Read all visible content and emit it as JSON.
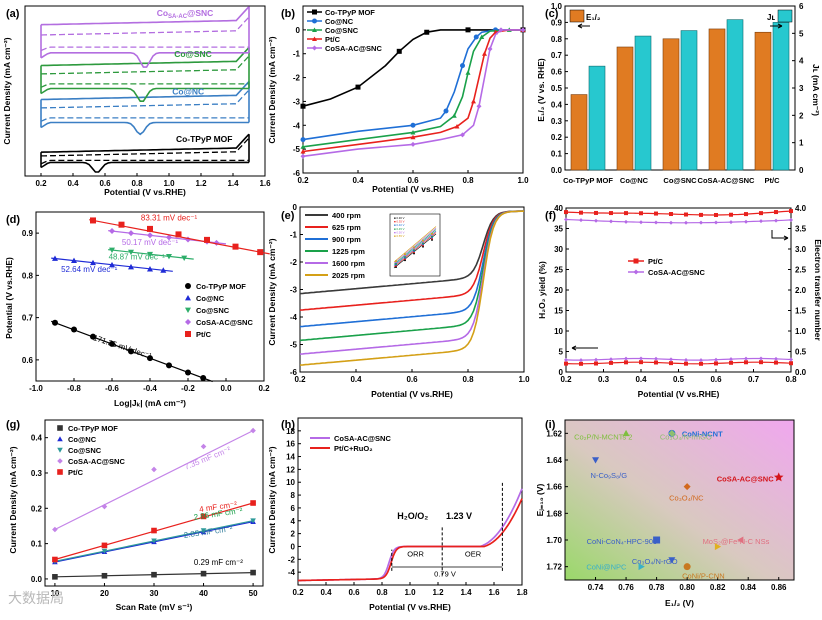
{
  "watermark": "大数据局",
  "chart_data": [
    {
      "panel": "(a)",
      "type": "line",
      "xlabel": "Potential (V vs.RHE)",
      "ylabel": "Current Density (mA cm⁻²)",
      "xlim": [
        0.1,
        1.6
      ],
      "xticks": [
        0.2,
        0.4,
        0.6,
        0.8,
        1.0,
        1.2,
        1.4,
        1.6
      ],
      "series": [
        {
          "name": "Co-TPyP MOF",
          "color": "#000000"
        },
        {
          "name": "Co@NC",
          "color": "#3b7fc4"
        },
        {
          "name": "Co@SNC",
          "color": "#2e9a3e"
        },
        {
          "name": "Coₛₐ-ₐᶜ@SNC",
          "label": "CoSA-AC@SNC",
          "color": "#b36ee0"
        }
      ]
    },
    {
      "panel": "(b)",
      "type": "line",
      "xlabel": "Potential (V vs.RHE)",
      "ylabel": "Current Density (mA cm⁻²)",
      "xlim": [
        0.2,
        1.0
      ],
      "ylim": [
        -6,
        1
      ],
      "xticks": [
        0.2,
        0.4,
        0.6,
        0.8,
        1.0
      ],
      "yticks": [
        0,
        -1,
        -2,
        -3,
        -4,
        -5,
        -6
      ],
      "series": [
        {
          "name": "Co-TPyP MOF",
          "color": "#000000",
          "x": [
            0.2,
            0.3,
            0.4,
            0.5,
            0.55,
            0.6,
            0.65,
            0.7,
            0.8,
            0.9,
            1.0
          ],
          "y": [
            -3.2,
            -2.9,
            -2.4,
            -1.5,
            -0.9,
            -0.4,
            -0.1,
            0,
            0,
            0,
            0
          ]
        },
        {
          "name": "Co@NC",
          "color": "#1f6fd6",
          "x": [
            0.2,
            0.4,
            0.6,
            0.7,
            0.72,
            0.75,
            0.78,
            0.8,
            0.83,
            0.85,
            0.9,
            1.0
          ],
          "y": [
            -4.6,
            -4.25,
            -4.0,
            -3.7,
            -3.4,
            -2.6,
            -1.5,
            -0.8,
            -0.3,
            -0.1,
            0,
            0
          ]
        },
        {
          "name": "Co@SNC",
          "color": "#1aa14a",
          "x": [
            0.2,
            0.4,
            0.6,
            0.7,
            0.75,
            0.78,
            0.8,
            0.82,
            0.85,
            0.88,
            0.95,
            1.0
          ],
          "y": [
            -4.9,
            -4.6,
            -4.3,
            -4.05,
            -3.6,
            -2.8,
            -1.8,
            -0.9,
            -0.3,
            -0.05,
            0,
            0
          ]
        },
        {
          "name": "Pt/C",
          "color": "#e8211d",
          "x": [
            0.2,
            0.4,
            0.6,
            0.7,
            0.76,
            0.8,
            0.82,
            0.84,
            0.86,
            0.88,
            0.9,
            0.95,
            1.0
          ],
          "y": [
            -5.1,
            -4.8,
            -4.5,
            -4.3,
            -4.05,
            -3.7,
            -3.0,
            -2.0,
            -1.0,
            -0.35,
            -0.1,
            0,
            0
          ]
        },
        {
          "name": "CoSA-AC@SNC",
          "color": "#b56ae6",
          "x": [
            0.2,
            0.4,
            0.6,
            0.7,
            0.78,
            0.82,
            0.84,
            0.86,
            0.88,
            0.9,
            0.92,
            0.95,
            1.0
          ],
          "y": [
            -5.3,
            -5.0,
            -4.8,
            -4.6,
            -4.4,
            -4.0,
            -3.2,
            -2.0,
            -0.8,
            -0.2,
            0,
            0,
            0
          ]
        }
      ]
    },
    {
      "panel": "(c)",
      "type": "bar",
      "ylabel": "E₁/₂ (V vs. RHE)",
      "ylabel2": "Jʟ (mA cm⁻²)",
      "ylim": [
        0.0,
        1.0
      ],
      "ylim2": [
        0,
        6
      ],
      "yticks": [
        0.0,
        0.1,
        0.2,
        0.3,
        0.4,
        0.5,
        0.6,
        0.7,
        0.8,
        0.9,
        1.0
      ],
      "yticks2": [
        0,
        1,
        2,
        3,
        4,
        5,
        6
      ],
      "categories": [
        "Co-TPyP MOF",
        "Co@NC",
        "Co@SNC",
        "CoSA-AC@SNC",
        "Pt/C"
      ],
      "series": [
        {
          "name": "E1/2",
          "color": "#e07b22",
          "values": [
            0.46,
            0.75,
            0.8,
            0.86,
            0.84
          ]
        },
        {
          "name": "JL",
          "color": "#27c8cf",
          "values": [
            3.8,
            4.9,
            5.1,
            5.5,
            5.4
          ]
        }
      ],
      "legend": [
        "E₁/₂",
        "Jʟ"
      ]
    },
    {
      "panel": "(d)",
      "type": "scatter",
      "xlabel": "Log|Jₖ| (mA cm⁻²)",
      "ylabel": "Potential (V vs.RHE)",
      "xlim": [
        -1.0,
        0.2
      ],
      "ylim": [
        0.55,
        0.95
      ],
      "xticks": [
        -1.0,
        -0.8,
        -0.6,
        -0.4,
        -0.2,
        0.0,
        0.2
      ],
      "yticks": [
        0.6,
        0.7,
        0.8,
        0.9
      ],
      "series": [
        {
          "name": "Co-TPyP MOF",
          "color": "#000000",
          "marker": "circle",
          "x": [
            -0.9,
            -0.8,
            -0.7,
            -0.6,
            -0.5,
            -0.4,
            -0.3,
            -0.2,
            -0.12
          ],
          "y": [
            0.688,
            0.672,
            0.655,
            0.638,
            0.62,
            0.604,
            0.587,
            0.57,
            0.557
          ]
        },
        {
          "name": "Co@NC",
          "color": "#1f2bd6",
          "marker": "triangle",
          "x": [
            -0.9,
            -0.8,
            -0.7,
            -0.6,
            -0.5,
            -0.4,
            -0.33
          ],
          "y": [
            0.84,
            0.835,
            0.83,
            0.825,
            0.82,
            0.815,
            0.812
          ]
        },
        {
          "name": "Co@SNC",
          "color": "#2eae6a",
          "marker": "triangle-down",
          "x": [
            -0.6,
            -0.5,
            -0.4,
            -0.3,
            -0.22
          ],
          "y": [
            0.86,
            0.855,
            0.85,
            0.845,
            0.841
          ]
        },
        {
          "name": "CoSA-AC@SNC",
          "color": "#b56ae6",
          "marker": "diamond",
          "x": [
            -0.6,
            -0.5,
            -0.4,
            -0.3,
            -0.2,
            -0.1,
            -0.05
          ],
          "y": [
            0.905,
            0.9,
            0.895,
            0.89,
            0.885,
            0.88,
            0.877
          ]
        },
        {
          "name": "Pt/C",
          "color": "#e8211d",
          "marker": "square",
          "x": [
            -0.7,
            -0.55,
            -0.4,
            -0.25,
            -0.1,
            0.05,
            0.18
          ],
          "y": [
            0.93,
            0.92,
            0.91,
            0.897,
            0.884,
            0.868,
            0.855
          ]
        }
      ],
      "annotations": [
        "171.35 mV dec⁻¹",
        "52.64 mV dec⁻¹",
        "48.87 mV dec⁻¹",
        "50.17 mV dec⁻¹",
        "83.31 mV dec⁻¹"
      ]
    },
    {
      "panel": "(e)",
      "type": "line",
      "xlabel": "Potential (V vs.RHE)",
      "ylabel": "Current Density (mA cm⁻²)",
      "xlim": [
        0.2,
        1.0
      ],
      "ylim": [
        -6,
        0
      ],
      "xticks": [
        0.2,
        0.4,
        0.6,
        0.8,
        1.0
      ],
      "yticks": [
        0,
        -1,
        -2,
        -3,
        -4,
        -5,
        -6
      ],
      "series": [
        {
          "name": "400 rpm",
          "color": "#3a3a3a",
          "y0": -3.15
        },
        {
          "name": "625 rpm",
          "color": "#e8211d",
          "y0": -3.75
        },
        {
          "name": "900 rpm",
          "color": "#1f6fd6",
          "y0": -4.35
        },
        {
          "name": "1225 rpm",
          "color": "#1aa14a",
          "y0": -4.85
        },
        {
          "name": "1600 rpm",
          "color": "#b56ae6",
          "y0": -5.35
        },
        {
          "name": "2025 rpm",
          "color": "#d4a017",
          "y0": -5.75
        }
      ],
      "inset": {
        "type": "scatter",
        "legend": [
          "0.30 V",
          "0.35 V",
          "0.40 V",
          "0.45 V",
          "0.50 V",
          "0.55 V"
        ]
      }
    },
    {
      "panel": "(f)",
      "type": "line",
      "xlabel": "Potential (V vs.RHE)",
      "ylabel": "H₂O₂ yield (%)",
      "ylabel2": "Electron transfer number",
      "xlim": [
        0.2,
        0.8
      ],
      "ylim": [
        0,
        40
      ],
      "ylim2": [
        0,
        4.0
      ],
      "xticks": [
        0.2,
        0.3,
        0.4,
        0.5,
        0.6,
        0.7,
        0.8
      ],
      "yticks": [
        0,
        5,
        10,
        15,
        20,
        25,
        30,
        35,
        40
      ],
      "yticks2": [
        0.0,
        0.5,
        1.0,
        1.5,
        2.0,
        2.5,
        3.0,
        3.5,
        4.0
      ],
      "series": [
        {
          "name": "Pt/C",
          "color": "#e8211d",
          "yield": 2.2,
          "n": 3.92
        },
        {
          "name": "CoSA-AC@SNC",
          "color": "#b56ae6",
          "yield": 3.1,
          "n": 3.72
        }
      ]
    },
    {
      "panel": "(g)",
      "type": "scatter",
      "xlabel": "Scan Rate (mV s⁻¹)",
      "ylabel": "Current Density (mA cm⁻²)",
      "xlim": [
        8,
        52
      ],
      "ylim": [
        -0.02,
        0.45
      ],
      "xticks": [
        10,
        20,
        30,
        40,
        50
      ],
      "yticks": [
        0.0,
        0.1,
        0.2,
        0.3,
        0.4
      ],
      "x": [
        10,
        20,
        30,
        40,
        50
      ],
      "series": [
        {
          "name": "Co-TPyP MOF",
          "color": "#333333",
          "marker": "square",
          "values": [
            0.006,
            0.009,
            0.012,
            0.015,
            0.018
          ]
        },
        {
          "name": "Co@NC",
          "color": "#1f2bd6",
          "marker": "triangle",
          "values": [
            0.048,
            0.077,
            0.105,
            0.133,
            0.162
          ]
        },
        {
          "name": "Co@SNC",
          "color": "#2e9a9a",
          "marker": "triangle-down",
          "values": [
            0.05,
            0.079,
            0.108,
            0.137,
            0.165
          ]
        },
        {
          "name": "CoSA-AC@SNC",
          "color": "#c484e8",
          "marker": "diamond",
          "values": [
            0.14,
            0.205,
            0.31,
            0.375,
            0.42
          ]
        },
        {
          "name": "Pt/C",
          "color": "#e8211d",
          "marker": "square",
          "values": [
            0.055,
            0.095,
            0.137,
            0.177,
            0.215
          ]
        }
      ],
      "annotations": [
        "7.35 mF cm⁻²",
        "4 mF cm⁻²",
        "2.86 mF cm⁻²",
        "2.85 mF cm⁻²",
        "0.29 mF cm⁻²"
      ]
    },
    {
      "panel": "(h)",
      "type": "line",
      "xlabel": "Potential (V vs.RHE)",
      "ylabel": "Current Density (mA cm⁻²)",
      "xlim": [
        0.2,
        1.8
      ],
      "ylim": [
        -6,
        20
      ],
      "xticks": [
        0.2,
        0.4,
        0.6,
        0.8,
        1.0,
        1.2,
        1.4,
        1.6,
        1.8
      ],
      "yticks": [
        -4,
        -2,
        0,
        2,
        4,
        6,
        8,
        10,
        12,
        14,
        16,
        18
      ],
      "series": [
        {
          "name": "CoSA-AC@SNC",
          "color": "#b56ae6"
        },
        {
          "name": "Pt/C+RuO₂",
          "color": "#e8211d"
        }
      ],
      "annotations": [
        "H₂O/O₂",
        "1.23 V",
        "ORR",
        "OER",
        "0.79 V"
      ]
    },
    {
      "panel": "(i)",
      "type": "scatter",
      "xlabel": "E₁/₂ (V)",
      "ylabel": "Eⱼ₌₁₀ (V)",
      "xlim": [
        0.72,
        0.87
      ],
      "ylim": [
        1.73,
        1.61
      ],
      "xticks": [
        0.74,
        0.76,
        0.78,
        0.8,
        0.82,
        0.84,
        0.86
      ],
      "yticks": [
        1.62,
        1.64,
        1.66,
        1.68,
        1.7,
        1.72
      ],
      "points": [
        {
          "label": "CoNi-NCNT",
          "x": 0.79,
          "y": 1.62,
          "color": "#1f6fd6",
          "marker": "circle"
        },
        {
          "label": "Co₂P/N-MCNTs 2",
          "x": 0.76,
          "y": 1.62,
          "color": "#7fbf3f",
          "marker": "triangle"
        },
        {
          "label": "Co₃O₄/N-rmGO",
          "x": 0.79,
          "y": 1.62,
          "color": "#8fbf6f",
          "marker": "diamond"
        },
        {
          "label": "N-Co₉S₈/G",
          "x": 0.74,
          "y": 1.64,
          "color": "#3a5fc8",
          "marker": "triangle-down"
        },
        {
          "label": "CoSA-AC@SNC",
          "x": 0.86,
          "y": 1.653,
          "color": "#d4141a",
          "marker": "star"
        },
        {
          "label": "Co₃O₄/NC",
          "x": 0.8,
          "y": 1.66,
          "color": "#d2691e",
          "marker": "diamond"
        },
        {
          "label": "CoNi-CoN₄-HPC-900",
          "x": 0.78,
          "y": 1.7,
          "color": "#3a5fc8",
          "marker": "square"
        },
        {
          "label": "MoS₂@Fe-N-C NSs",
          "x": 0.835,
          "y": 1.7,
          "color": "#e07080",
          "marker": "triangle-left"
        },
        {
          "label": "",
          "x": 0.82,
          "y": 1.705,
          "color": "#e0b020",
          "marker": "triangle-right"
        },
        {
          "label": "Co₃O₄/N-rGO",
          "x": 0.79,
          "y": 1.715,
          "color": "#3a5fc8",
          "marker": "triangle-down"
        },
        {
          "label": "CoNi@NPC",
          "x": 0.77,
          "y": 1.72,
          "color": "#3ab0c8",
          "marker": "triangle-right"
        },
        {
          "label": "CoNi/P-CNN",
          "x": 0.8,
          "y": 1.72,
          "color": "#c87820",
          "marker": "circle"
        }
      ]
    }
  ]
}
